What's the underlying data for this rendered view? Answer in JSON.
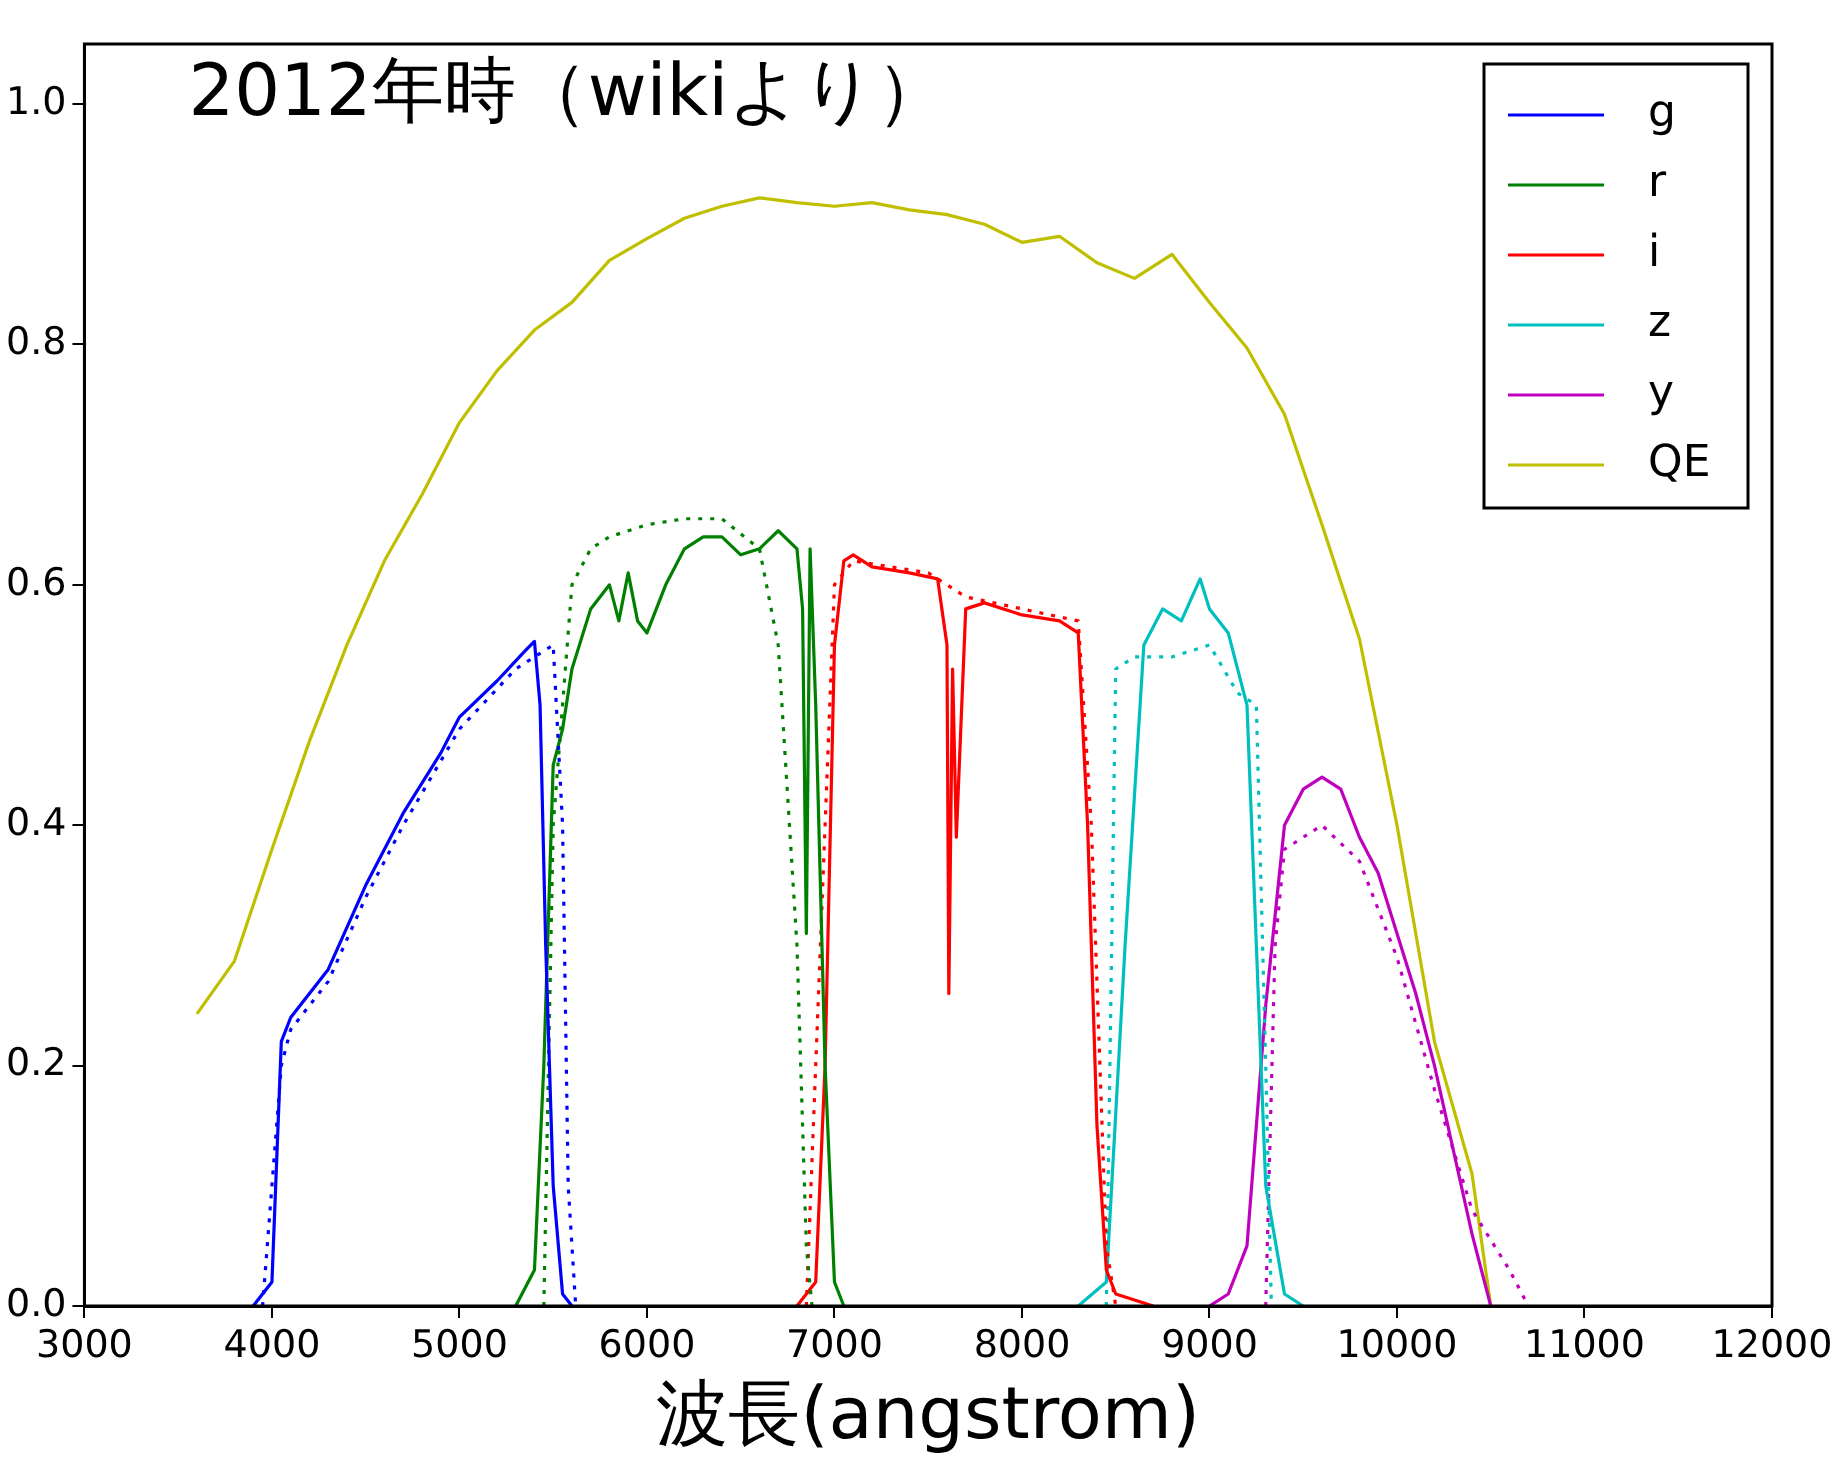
{
  "chart_data": {
    "type": "line",
    "title": "2012年時（wikiより）",
    "xlabel": "波長(angstrom)",
    "xlim": [
      3000,
      12000
    ],
    "xticks": [
      3000,
      4000,
      5000,
      6000,
      7000,
      8000,
      9000,
      10000,
      11000,
      12000
    ],
    "ylim": [
      0,
      1.05
    ],
    "yticks": [
      {
        "value": 0,
        "label": "0.0"
      },
      {
        "value": 0.2,
        "label": "0.2"
      },
      {
        "value": 0.4,
        "label": "0.4"
      },
      {
        "value": 0.6,
        "label": "0.6"
      },
      {
        "value": 0.8,
        "label": "0.8"
      },
      {
        "value": 1,
        "label": "1.0"
      }
    ],
    "grid": false,
    "legend": "top right",
    "marker": "none",
    "series": [
      {
        "name": "g",
        "color": "#0000ff",
        "line_style": "solid",
        "x": [
          3900,
          4000,
          4050,
          4100,
          4300,
          4500,
          4700,
          4900,
          5000,
          5200,
          5350,
          5400,
          5430,
          5460,
          5500,
          5550,
          5600
        ],
        "values": [
          0,
          0.02,
          0.22,
          0.24,
          0.28,
          0.35,
          0.41,
          0.46,
          0.49,
          0.52,
          0.545,
          0.553,
          0.5,
          0.3,
          0.1,
          0.01,
          0
        ]
      },
      {
        "color": "#0000ff",
        "line_style": "dotted",
        "x": [
          3950,
          4050,
          4100,
          4300,
          4500,
          4700,
          5000,
          5300,
          5500,
          5550,
          5580,
          5620
        ],
        "values": [
          0,
          0.2,
          0.23,
          0.27,
          0.34,
          0.4,
          0.48,
          0.53,
          0.55,
          0.4,
          0.1,
          0
        ]
      },
      {
        "name": "r",
        "color": "#008000",
        "line_style": "solid",
        "x": [
          5300,
          5400,
          5450,
          5500,
          5550,
          5600,
          5700,
          5800,
          5850,
          5900,
          5950,
          6000,
          6100,
          6200,
          6300,
          6400,
          6500,
          6600,
          6700,
          6800,
          6830,
          6850,
          6870,
          6900,
          6950,
          7000,
          7050
        ],
        "values": [
          0,
          0.03,
          0.2,
          0.45,
          0.48,
          0.53,
          0.58,
          0.6,
          0.57,
          0.61,
          0.57,
          0.56,
          0.6,
          0.63,
          0.64,
          0.64,
          0.625,
          0.63,
          0.645,
          0.63,
          0.58,
          0.31,
          0.63,
          0.5,
          0.2,
          0.02,
          0
        ]
      },
      {
        "color": "#008000",
        "line_style": "dotted",
        "x": [
          5450,
          5500,
          5600,
          5700,
          5800,
          6000,
          6200,
          6400,
          6600,
          6700,
          6800,
          6850,
          6880
        ],
        "values": [
          0,
          0.4,
          0.6,
          0.63,
          0.64,
          0.65,
          0.655,
          0.655,
          0.63,
          0.55,
          0.3,
          0.05,
          0
        ]
      },
      {
        "name": "i",
        "color": "#ff0000",
        "line_style": "solid",
        "x": [
          6800,
          6900,
          6950,
          7000,
          7050,
          7100,
          7200,
          7400,
          7550,
          7600,
          7610,
          7630,
          7650,
          7700,
          7800,
          8000,
          8200,
          8300,
          8350,
          8400,
          8450,
          8500,
          8700
        ],
        "values": [
          0,
          0.02,
          0.2,
          0.55,
          0.62,
          0.625,
          0.615,
          0.61,
          0.605,
          0.55,
          0.26,
          0.53,
          0.39,
          0.58,
          0.585,
          0.575,
          0.57,
          0.56,
          0.4,
          0.15,
          0.03,
          0.01,
          0
        ]
      },
      {
        "color": "#ff0000",
        "line_style": "dotted",
        "x": [
          6850,
          7000,
          7100,
          7500,
          7700,
          8000,
          8300,
          8370,
          8450,
          8500
        ],
        "values": [
          0,
          0.6,
          0.62,
          0.61,
          0.59,
          0.58,
          0.57,
          0.4,
          0.05,
          0
        ]
      },
      {
        "name": "z",
        "color": "#00bfbf",
        "line_style": "solid",
        "x": [
          8300,
          8450,
          8550,
          8650,
          8750,
          8850,
          8950,
          9000,
          9100,
          9200,
          9250,
          9300,
          9400,
          9500
        ],
        "values": [
          0,
          0.02,
          0.3,
          0.55,
          0.58,
          0.57,
          0.605,
          0.58,
          0.56,
          0.5,
          0.3,
          0.1,
          0.01,
          0
        ]
      },
      {
        "color": "#00bfbf",
        "line_style": "dotted",
        "x": [
          8450,
          8500,
          8600,
          8800,
          9000,
          9150,
          9250,
          9300,
          9330
        ],
        "values": [
          0,
          0.53,
          0.54,
          0.54,
          0.55,
          0.51,
          0.5,
          0.2,
          0
        ]
      },
      {
        "name": "y",
        "color": "#bf00bf",
        "line_style": "solid",
        "x": [
          9000,
          9100,
          9200,
          9300,
          9400,
          9500,
          9600,
          9700,
          9800,
          9900,
          10000,
          10100,
          10200,
          10300,
          10400,
          10500
        ],
        "values": [
          0,
          0.01,
          0.05,
          0.25,
          0.4,
          0.43,
          0.44,
          0.43,
          0.39,
          0.36,
          0.31,
          0.26,
          0.2,
          0.13,
          0.06,
          0
        ]
      },
      {
        "color": "#bf00bf",
        "line_style": "dotted",
        "x": [
          9300,
          9350,
          9400,
          9600,
          9800,
          10000,
          10200,
          10400,
          10600,
          10700
        ],
        "values": [
          0,
          0.3,
          0.38,
          0.4,
          0.37,
          0.29,
          0.18,
          0.08,
          0.03,
          0
        ]
      },
      {
        "name": "QE",
        "color": "#bfbf00",
        "line_style": "solid",
        "x": [
          3600,
          3800,
          4000,
          4200,
          4400,
          4600,
          4800,
          5000,
          5200,
          5400,
          5600,
          5800,
          6000,
          6200,
          6400,
          6600,
          6800,
          7000,
          7200,
          7400,
          7600,
          7800,
          8000,
          8200,
          8400,
          8600,
          8800,
          9000,
          9200,
          9400,
          9600,
          9800,
          10000,
          10200,
          10400,
          10500
        ],
        "values": [
          0.243,
          0.287,
          0.38,
          0.47,
          0.55,
          0.62,
          0.675,
          0.735,
          0.778,
          0.812,
          0.835,
          0.87,
          0.888,
          0.905,
          0.915,
          0.922,
          0.918,
          0.915,
          0.918,
          0.912,
          0.908,
          0.9,
          0.885,
          0.89,
          0.868,
          0.855,
          0.875,
          0.835,
          0.797,
          0.742,
          0.65,
          0.555,
          0.4,
          0.22,
          0.11,
          0
        ]
      }
    ]
  }
}
